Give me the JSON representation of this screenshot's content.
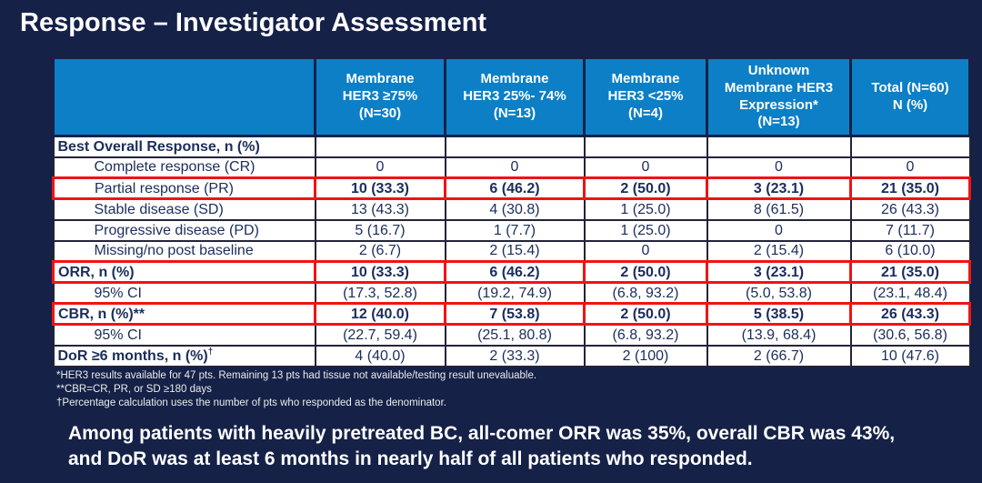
{
  "theme": {
    "background": "#152147",
    "header_bg": "#0d7fc6",
    "highlight_border": "#ee1414",
    "cell_text": "#1b2d5b",
    "title_color": "#ffffff"
  },
  "title": "Response – Investigator Assessment",
  "table": {
    "columns": [
      "",
      "Membrane\nHER3 ≥75%\n(N=30)",
      "Membrane\nHER3 25%- 74%\n(N=13)",
      "Membrane\nHER3 <25%\n(N=4)",
      "Unknown\nMembrane HER3\nExpression*\n(N=13)",
      "Total (N=60)\nN (%)"
    ],
    "rows": [
      {
        "label": "Best Overall Response, n (%)",
        "style": "boldleft",
        "values": [
          "",
          "",
          "",
          "",
          ""
        ]
      },
      {
        "label": "Complete response (CR)",
        "style": "indent",
        "values": [
          "0",
          "0",
          "0",
          "0",
          "0"
        ]
      },
      {
        "label": "Partial response (PR)",
        "style": "indent",
        "highlight": true,
        "bold_values": true,
        "values": [
          "10 (33.3)",
          "6 (46.2)",
          "2 (50.0)",
          "3 (23.1)",
          "21 (35.0)"
        ]
      },
      {
        "label": "Stable disease (SD)",
        "style": "indent",
        "values": [
          "13 (43.3)",
          "4 (30.8)",
          "1 (25.0)",
          "8 (61.5)",
          "26 (43.3)"
        ]
      },
      {
        "label": "Progressive disease (PD)",
        "style": "indent",
        "values": [
          "5 (16.7)",
          "1 (7.7)",
          "1 (25.0)",
          "0",
          "7 (11.7)"
        ]
      },
      {
        "label": "Missing/no post baseline",
        "style": "indent",
        "values": [
          "2 (6.7)",
          "2 (15.4)",
          "0",
          "2 (15.4)",
          "6 (10.0)"
        ]
      },
      {
        "label": "ORR, n (%)",
        "style": "boldleft",
        "highlight": true,
        "bold_values": true,
        "values": [
          "10 (33.3)",
          "6 (46.2)",
          "2 (50.0)",
          "3 (23.1)",
          "21 (35.0)"
        ]
      },
      {
        "label": "95% CI",
        "style": "indent",
        "values": [
          "(17.3, 52.8)",
          "(19.2, 74.9)",
          "(6.8, 93.2)",
          "(5.0, 53.8)",
          "(23.1, 48.4)"
        ]
      },
      {
        "label": "CBR, n (%)**",
        "style": "boldleft",
        "highlight": true,
        "bold_values": true,
        "values": [
          "12 (40.0)",
          "7 (53.8)",
          "2 (50.0)",
          "5 (38.5)",
          "26 (43.3)"
        ]
      },
      {
        "label": "95% CI",
        "style": "indent",
        "values": [
          "(22.7, 59.4)",
          "(25.1, 80.8)",
          "(6.8, 93.2)",
          "(13.9, 68.4)",
          "(30.6, 56.8)"
        ]
      },
      {
        "label": "DoR ≥6 months, n (%)",
        "label_sup": "†",
        "style": "boldleft",
        "values": [
          "4 (40.0)",
          "2 (33.3)",
          "2 (100)",
          "2 (66.7)",
          "10 (47.6)"
        ]
      }
    ]
  },
  "footnotes": [
    "*HER3 results available for 47 pts. Remaining 13 pts had tissue not available/testing result unevaluable.",
    "**CBR=CR, PR, or SD ≥180 days",
    "†Percentage calculation uses the number of pts who responded as the denominator."
  ],
  "summary": "Among patients with heavily pretreated BC, all-comer ORR was 35%, overall CBR was 43%,\nand DoR was at least 6 months in nearly half of all patients who responded."
}
